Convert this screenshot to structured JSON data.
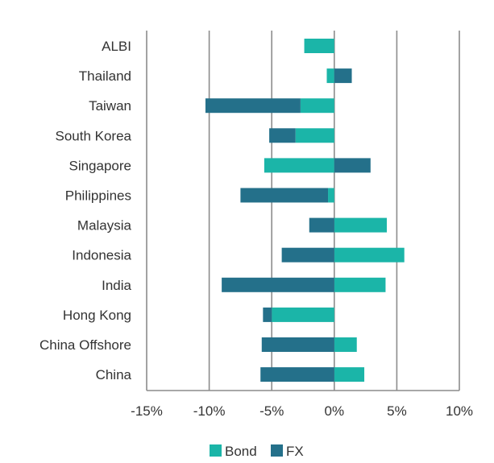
{
  "chart_data": {
    "type": "bar",
    "orientation": "horizontal",
    "stacked": true,
    "categories": [
      "ALBI",
      "Thailand",
      "Taiwan",
      "South Korea",
      "Singapore",
      "Philippines",
      "Malaysia",
      "Indonesia",
      "India",
      "Hong Kong",
      "China Offshore",
      "China"
    ],
    "series": [
      {
        "name": "Bond",
        "color": "#1bb5a8",
        "values": [
          -2.4,
          -0.6,
          -2.7,
          -3.1,
          -5.6,
          -0.5,
          4.2,
          5.6,
          4.1,
          -5.0,
          1.8,
          2.4
        ]
      },
      {
        "name": "FX",
        "color": "#24708a",
        "values": [
          0.0,
          1.4,
          -7.6,
          -2.1,
          2.9,
          -7.0,
          -2.0,
          -4.2,
          -9.0,
          -0.7,
          -5.8,
          -5.9
        ]
      }
    ],
    "xlim": [
      -15,
      10
    ],
    "xticks": [
      "-15%",
      "-10%",
      "-5%",
      "0%",
      "5%",
      "10%"
    ],
    "xtick_values": [
      -15,
      -10,
      -5,
      0,
      5,
      10
    ],
    "grid": "vertical",
    "legend_position": "bottom-center"
  }
}
